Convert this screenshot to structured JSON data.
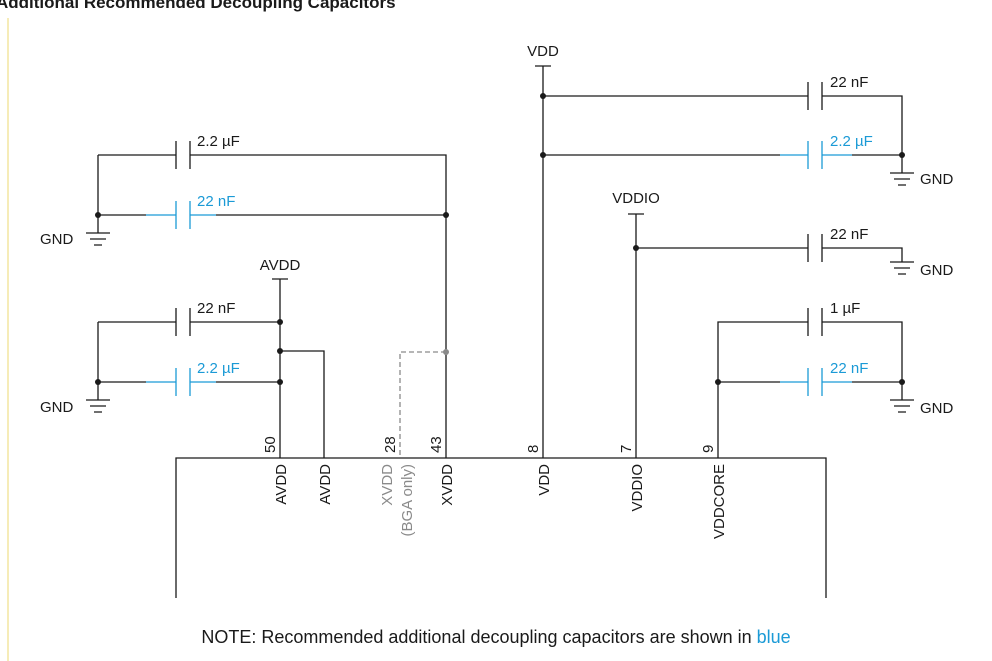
{
  "title": "Additional Recommended Decoupling Capacitors",
  "colors": {
    "wire": "#1a1a1a",
    "recommended": "#1b9ad6",
    "optional": "#8a8a8a",
    "margin_line": "#f3e6a0"
  },
  "rails": {
    "vdd": "VDD",
    "vddio": "VDDIO",
    "avdd": "AVDD",
    "gnd": "GND"
  },
  "capacitors": {
    "xvdd_2u2": "2.2 µF",
    "xvdd_22n": "22 nF",
    "avdd_22n": "22 nF",
    "avdd_2u2": "2.2 µF",
    "vdd_22n": "22 nF",
    "vdd_2u2": "2.2 µF",
    "vddio_22n": "22 nF",
    "vddcore_1u": "1 µF",
    "vddcore_22n": "22 nF"
  },
  "pins": {
    "avdd1": {
      "number": "50",
      "name": "AVDD"
    },
    "avdd2": {
      "name": "AVDD"
    },
    "xvdd_bga": {
      "number": "28",
      "name": "XVDD",
      "note": "(BGA only)"
    },
    "xvdd": {
      "number": "43",
      "name": "XVDD"
    },
    "vdd": {
      "number": "8",
      "name": "VDD"
    },
    "vddio": {
      "number": "7",
      "name": "VDDIO"
    },
    "vddcore": {
      "number": "9",
      "name": "VDDCORE"
    }
  },
  "note": {
    "prefix": "NOTE: Recommended additional decoupling capacitors are shown in ",
    "highlight": "blue"
  }
}
